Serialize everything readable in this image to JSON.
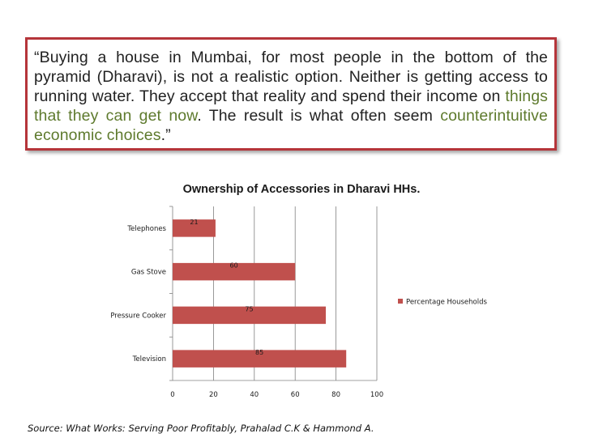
{
  "quote": {
    "open": "“Buying a house in Mumbai, for most people in the bottom of the pyramid (Dharavi), is not a realistic option. Neither is getting access to running water. They accept that reality and spend their income on ",
    "highlight1": "things that they can get now",
    "middle": ". The result is what often seem ",
    "highlight2": "counterintuitive economic choices",
    "close": ".”"
  },
  "colors": {
    "bar": "#c0504d",
    "accent_border": "#b5353a",
    "highlight": "#5e7a2d",
    "grid": "#808080"
  },
  "chart_data": {
    "type": "bar",
    "orientation": "horizontal",
    "title": "Ownership of Accessories in Dharavi HHs.",
    "categories": [
      "Telephones",
      "Gas Stove",
      "Pressure Cooker",
      "Television"
    ],
    "series": [
      {
        "name": "Percentage Households",
        "values": [
          21,
          60,
          75,
          85
        ]
      }
    ],
    "xlim": [
      0,
      100
    ],
    "x_ticks": [
      0,
      20,
      40,
      60,
      80,
      100
    ],
    "grid": true,
    "legend": "right"
  },
  "source": "Source: What Works: Serving Poor Profitably, Prahalad C.K & Hammond A."
}
